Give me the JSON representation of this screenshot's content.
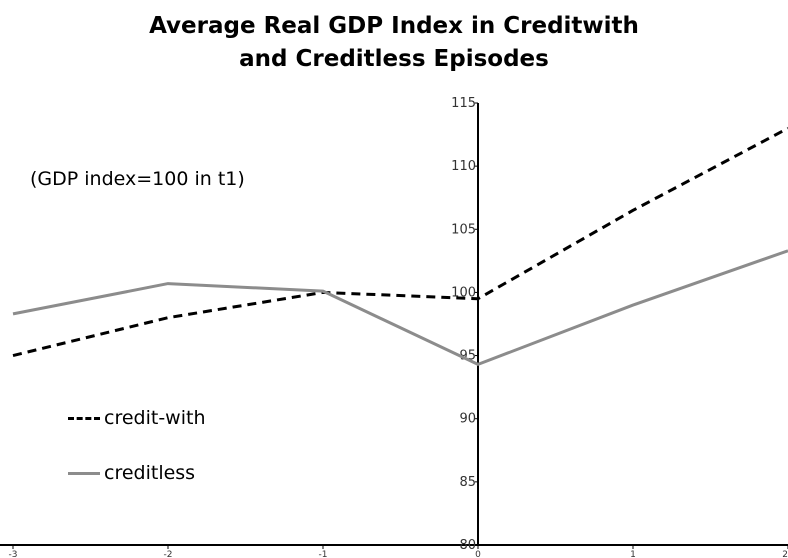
{
  "chart_data": {
    "type": "line",
    "title": [
      "Average Real GDP Index in Creditwith",
      "and Creditless Episodes"
    ],
    "annotation": "(GDP index=100 in t1)",
    "x": [
      -3,
      -2,
      -1,
      0,
      1,
      2
    ],
    "x_tick_labels": [
      "-3",
      "-2",
      "-1",
      "0",
      "1",
      "2"
    ],
    "y_tick_labels": [
      "80",
      "85",
      "90",
      "95",
      "100",
      "105",
      "110",
      "115"
    ],
    "ylim": [
      80,
      115
    ],
    "xlim": [
      -3,
      2
    ],
    "grid": false,
    "legend_position": "left",
    "series": [
      {
        "name": "credit-with",
        "values": [
          95.0,
          98.0,
          100.0,
          99.5,
          106.5,
          113.0
        ],
        "color": "#000000",
        "style": "dashed"
      },
      {
        "name": "creditless",
        "values": [
          98.3,
          100.7,
          100.1,
          94.3,
          99.0,
          103.3
        ],
        "color": "#8c8c8c",
        "style": "solid"
      }
    ]
  }
}
